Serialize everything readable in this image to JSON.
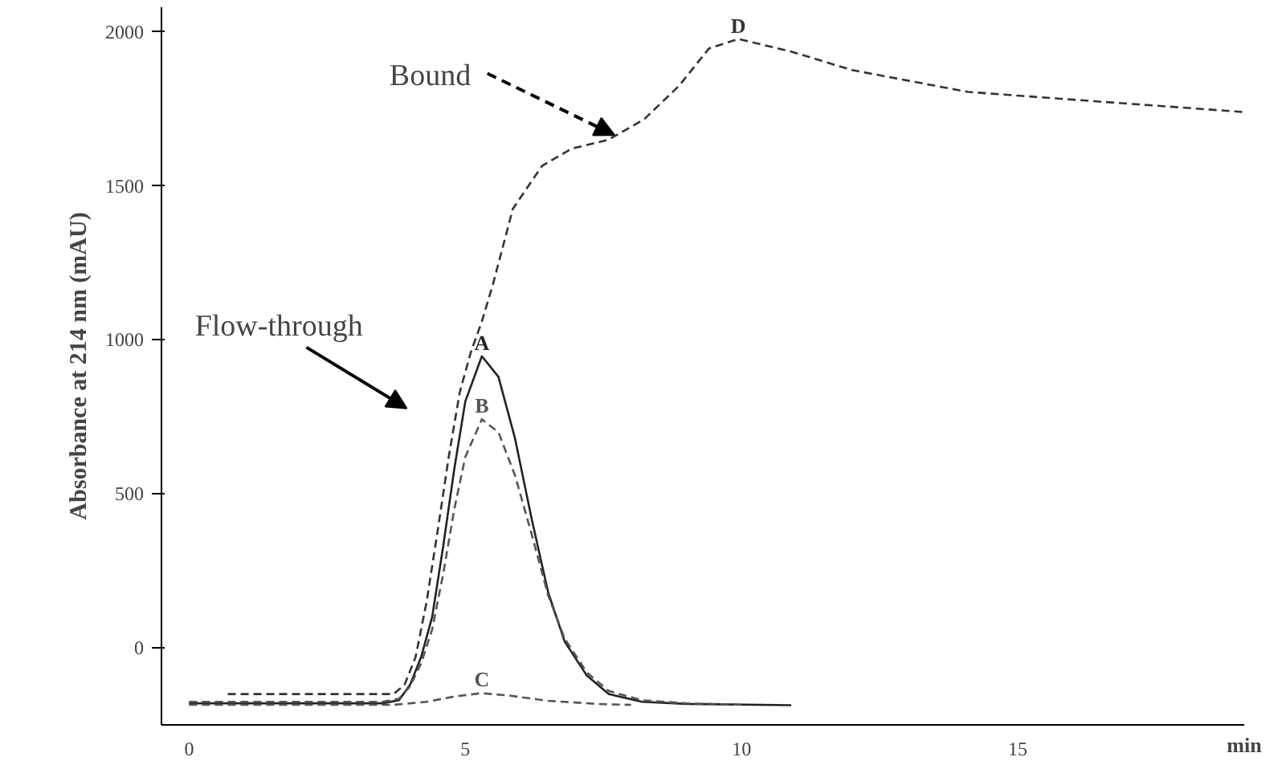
{
  "chart_data": {
    "type": "line",
    "xlabel": "min",
    "ylabel": "Absorbance at 214 nm (mAU)",
    "xlim": [
      -0.5,
      19.1
    ],
    "ylim": [
      -250,
      2080
    ],
    "xticks": [
      0,
      5,
      10,
      15
    ],
    "yticks": [
      0,
      500,
      1000,
      1500,
      2000
    ],
    "grid": false,
    "legend": false,
    "annotations": [
      "Flow-through",
      {
        "text": "Bound",
        "x": 7.7,
        "y": 1665
      }
    ],
    "series": [
      {
        "name": "A",
        "color": "#222222",
        "line_style": "solid",
        "x": [
          0,
          3.5,
          3.8,
          4.0,
          4.2,
          4.4,
          4.6,
          4.8,
          5.0,
          5.3,
          5.6,
          5.9,
          6.2,
          6.5,
          6.8,
          7.2,
          7.6,
          8.2,
          9,
          10.9
        ],
        "values": [
          -180,
          -180,
          -170,
          -120,
          -30,
          100,
          330,
          580,
          800,
          947,
          880,
          680,
          420,
          180,
          20,
          -90,
          -150,
          -175,
          -182,
          -186
        ]
      },
      {
        "name": "B",
        "color": "#555555",
        "line_style": "dashed",
        "x": [
          0,
          3.5,
          3.8,
          4.0,
          4.2,
          4.4,
          4.6,
          4.8,
          5.0,
          5.3,
          5.6,
          5.9,
          6.2,
          6.5,
          6.8,
          7.2,
          7.6,
          8.2,
          9,
          10
        ],
        "values": [
          -175,
          -175,
          -165,
          -125,
          -50,
          60,
          240,
          450,
          620,
          742,
          700,
          560,
          370,
          170,
          30,
          -80,
          -140,
          -170,
          -180,
          -185
        ]
      },
      {
        "name": "C",
        "color": "#555555",
        "line_style": "dashed",
        "x": [
          0,
          3.7,
          4.3,
          4.8,
          5.3,
          5.8,
          6.5,
          7.5,
          8
        ],
        "values": [
          -185,
          -185,
          -175,
          -158,
          -147,
          -155,
          -172,
          -183,
          -185
        ]
      },
      {
        "name": "D",
        "color": "#333333",
        "line_style": "dashed",
        "x": [
          0.7,
          3.7,
          3.9,
          4.1,
          4.3,
          4.5,
          4.7,
          4.9,
          5.1,
          5.3,
          5.5,
          5.86,
          6.39,
          6.93,
          7.58,
          8.23,
          8.87,
          9.41,
          9.94,
          10.9,
          12,
          14.1,
          16.3,
          19.07
        ],
        "values": [
          -150,
          -150,
          -120,
          -30,
          150,
          380,
          620,
          830,
          960,
          1060,
          1180,
          1425,
          1565,
          1621,
          1649,
          1715,
          1825,
          1946,
          1977,
          1936,
          1876,
          1805,
          1776,
          1740
        ]
      }
    ]
  }
}
